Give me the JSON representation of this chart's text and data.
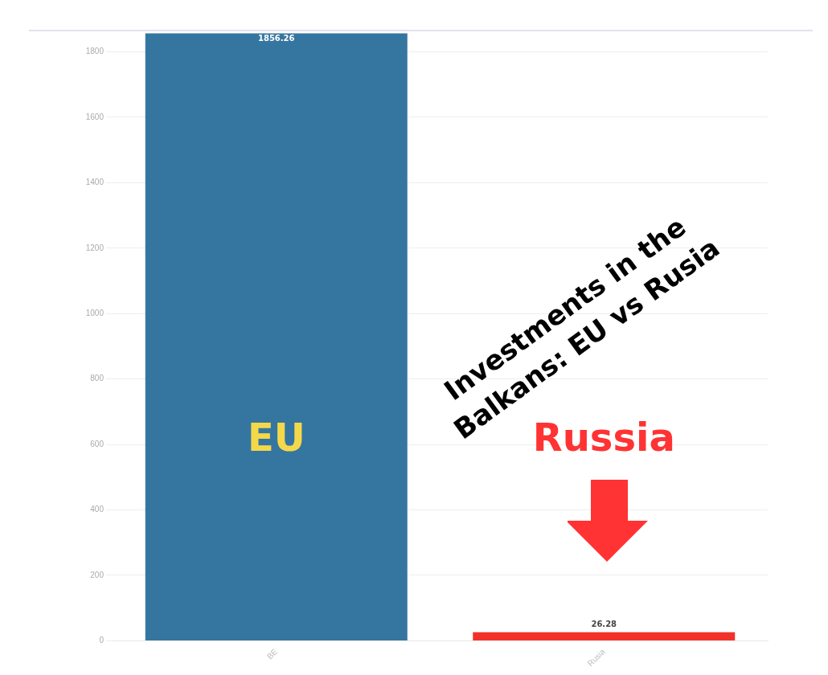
{
  "chart_data": {
    "type": "bar",
    "title": "Investments in the Balkans: EU vs Rusia",
    "categories": [
      "BE",
      "Rusia"
    ],
    "values": [
      1856.26,
      26.28
    ],
    "colors": [
      "#3576a0",
      "#f2322a"
    ],
    "ylim": [
      0,
      1860
    ],
    "yticks": [
      0,
      200,
      400,
      600,
      800,
      1000,
      1200,
      1400,
      1600,
      1800
    ],
    "grid": "y",
    "legend": false,
    "data_labels": true,
    "annotations": [
      "EU",
      "Russia"
    ]
  }
}
